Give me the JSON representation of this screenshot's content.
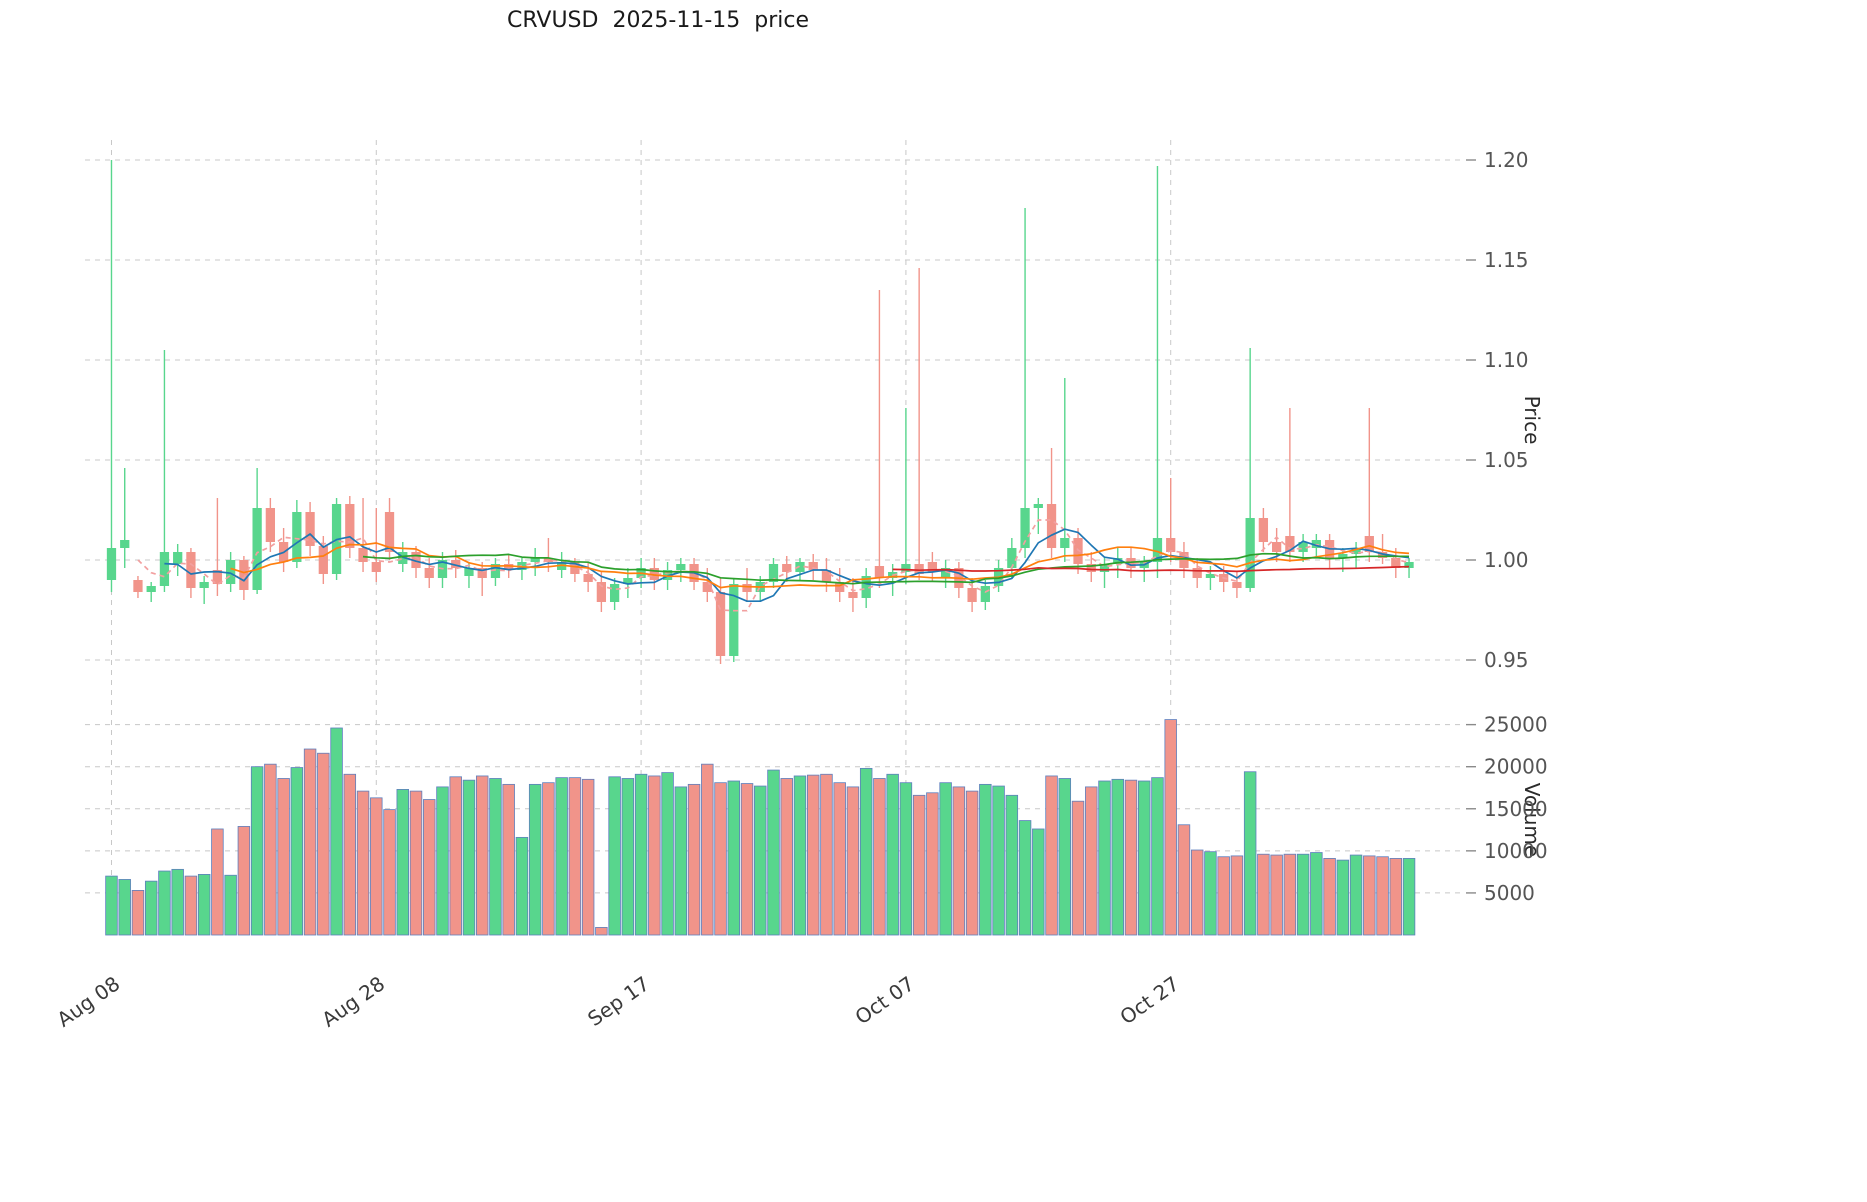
{
  "chart_data": {
    "type": "candlestick",
    "title": "CRVUSD  2025-11-15  price",
    "legend": "none",
    "grid": "dashed",
    "x_axis": {
      "tick_labels": [
        "Aug 08",
        "Aug 28",
        "Sep 17",
        "Oct 07",
        "Oct 27"
      ],
      "tick_indices": [
        0,
        20,
        40,
        60,
        80
      ]
    },
    "price_axis": {
      "label": "Price",
      "tick_values": [
        0.95,
        1.0,
        1.05,
        1.1,
        1.15,
        1.2
      ],
      "tick_labels": [
        "0.95",
        "1.00",
        "1.05",
        "1.10",
        "1.15",
        "1.20"
      ],
      "range": [
        0.935,
        1.21
      ]
    },
    "volume_axis": {
      "label": "Volume",
      "tick_values": [
        5000,
        10000,
        15000,
        20000,
        25000
      ],
      "tick_labels": [
        "5000",
        "10000",
        "15000",
        "20000",
        "25000"
      ],
      "range": [
        0,
        26500
      ]
    },
    "colors": {
      "up": "#58d68d",
      "down": "#f1948a",
      "volume_edge": "#5d7fbe",
      "grid": "#c8c8c8",
      "tick_text": "#555555",
      "ma_short_dashed": "#f2a0a0",
      "ma5": "#1f77b4",
      "ma10": "#ff7f0e",
      "ma20": "#2ca02c",
      "ma60": "#d62728"
    },
    "moving_averages": [
      {
        "name": "MA3",
        "window": 3,
        "color": "#f2a0a0",
        "dash": "5 4"
      },
      {
        "name": "MA5",
        "window": 5,
        "color": "#1f77b4",
        "dash": ""
      },
      {
        "name": "MA10",
        "window": 10,
        "color": "#ff7f0e",
        "dash": ""
      },
      {
        "name": "MA20",
        "window": 20,
        "color": "#2ca02c",
        "dash": ""
      },
      {
        "name": "MA60",
        "window": 60,
        "color": "#d62728",
        "dash": ""
      }
    ],
    "dates": [
      "2025-08-08",
      "2025-08-09",
      "2025-08-10",
      "2025-08-11",
      "2025-08-12",
      "2025-08-13",
      "2025-08-14",
      "2025-08-15",
      "2025-08-16",
      "2025-08-17",
      "2025-08-18",
      "2025-08-19",
      "2025-08-20",
      "2025-08-21",
      "2025-08-22",
      "2025-08-23",
      "2025-08-24",
      "2025-08-25",
      "2025-08-26",
      "2025-08-27",
      "2025-08-28",
      "2025-08-29",
      "2025-08-30",
      "2025-08-31",
      "2025-09-01",
      "2025-09-02",
      "2025-09-03",
      "2025-09-04",
      "2025-09-05",
      "2025-09-06",
      "2025-09-07",
      "2025-09-08",
      "2025-09-09",
      "2025-09-10",
      "2025-09-11",
      "2025-09-12",
      "2025-09-13",
      "2025-09-14",
      "2025-09-15",
      "2025-09-16",
      "2025-09-17",
      "2025-09-18",
      "2025-09-19",
      "2025-09-20",
      "2025-09-21",
      "2025-09-22",
      "2025-09-23",
      "2025-09-24",
      "2025-09-25",
      "2025-09-26",
      "2025-09-27",
      "2025-09-28",
      "2025-09-29",
      "2025-09-30",
      "2025-10-01",
      "2025-10-02",
      "2025-10-03",
      "2025-10-04",
      "2025-10-05",
      "2025-10-06",
      "2025-10-07",
      "2025-10-08",
      "2025-10-09",
      "2025-10-10",
      "2025-10-11",
      "2025-10-12",
      "2025-10-13",
      "2025-10-14",
      "2025-10-15",
      "2025-10-16",
      "2025-10-17",
      "2025-10-18",
      "2025-10-19",
      "2025-10-20",
      "2025-10-21",
      "2025-10-22",
      "2025-10-23",
      "2025-10-24",
      "2025-10-25",
      "2025-10-26",
      "2025-10-27",
      "2025-10-28",
      "2025-10-29",
      "2025-10-30",
      "2025-10-31",
      "2025-11-01",
      "2025-11-02",
      "2025-11-03",
      "2025-11-04",
      "2025-11-05",
      "2025-11-06",
      "2025-11-07",
      "2025-11-08",
      "2025-11-09",
      "2025-11-10",
      "2025-11-11",
      "2025-11-12",
      "2025-11-13",
      "2025-11-14"
    ],
    "open": [
      0.99,
      1.006,
      0.99,
      0.984,
      0.987,
      0.998,
      1.004,
      0.986,
      0.995,
      0.988,
      1.0,
      0.985,
      1.026,
      1.009,
      0.999,
      1.024,
      1.007,
      0.993,
      1.028,
      1.006,
      0.999,
      1.024,
      0.998,
      1.004,
      0.996,
      0.991,
      1.0,
      0.992,
      0.996,
      0.991,
      0.998,
      0.995,
      0.999,
      1.001,
      0.995,
      0.999,
      0.993,
      0.989,
      0.979,
      0.988,
      0.991,
      0.996,
      0.99,
      0.995,
      0.998,
      0.989,
      0.984,
      0.952,
      0.988,
      0.984,
      0.989,
      0.998,
      0.994,
      0.999,
      0.995,
      0.989,
      0.984,
      0.981,
      0.997,
      0.991,
      0.994,
      0.998,
      0.999,
      0.991,
      0.996,
      0.986,
      0.979,
      0.987,
      0.996,
      1.006,
      1.026,
      1.028,
      1.006,
      1.011,
      0.998,
      0.994,
      0.998,
      1.001,
      0.996,
      0.999,
      1.011,
      1.004,
      0.996,
      0.991,
      0.993,
      0.989,
      0.986,
      1.021,
      1.009,
      1.012,
      1.004,
      1.006,
      1.01,
      1.001,
      1.003,
      1.012,
      1.004,
      1.001,
      0.996
    ],
    "high": [
      1.2,
      1.046,
      0.992,
      0.989,
      1.105,
      1.008,
      1.006,
      0.992,
      1.031,
      1.004,
      1.002,
      1.046,
      1.031,
      1.016,
      1.03,
      1.029,
      1.012,
      1.031,
      1.032,
      1.031,
      1.026,
      1.031,
      1.009,
      1.007,
      1.001,
      1.004,
      1.005,
      0.999,
      0.999,
      1.001,
      1.003,
      1.001,
      1.006,
      1.011,
      1.004,
      1.001,
      0.999,
      0.994,
      0.991,
      0.996,
      1.001,
      1.001,
      0.999,
      1.001,
      1.001,
      0.996,
      0.991,
      0.991,
      0.996,
      0.992,
      1.001,
      1.002,
      1.001,
      1.003,
      1.001,
      0.996,
      0.991,
      0.996,
      1.135,
      0.998,
      1.076,
      1.146,
      1.004,
      1.0,
      0.999,
      0.991,
      0.99,
      1.0,
      1.011,
      1.176,
      1.031,
      1.056,
      1.091,
      1.016,
      1.004,
      1.001,
      1.006,
      1.006,
      1.002,
      1.197,
      1.041,
      1.009,
      1.001,
      0.997,
      0.997,
      0.994,
      1.106,
      1.026,
      1.016,
      1.076,
      1.013,
      1.013,
      1.013,
      1.006,
      1.009,
      1.076,
      1.013,
      1.006,
      1.001
    ],
    "low": [
      0.984,
      0.996,
      0.981,
      0.979,
      0.984,
      0.992,
      0.981,
      0.978,
      0.982,
      0.984,
      0.98,
      0.983,
      1.004,
      0.994,
      0.996,
      1.002,
      0.988,
      0.99,
      1.001,
      0.994,
      0.989,
      1.0,
      0.994,
      0.991,
      0.986,
      0.986,
      0.991,
      0.986,
      0.982,
      0.987,
      0.991,
      0.99,
      0.992,
      0.994,
      0.991,
      0.989,
      0.984,
      0.974,
      0.975,
      0.981,
      0.986,
      0.985,
      0.985,
      0.989,
      0.985,
      0.979,
      0.948,
      0.949,
      0.979,
      0.979,
      0.986,
      0.989,
      0.99,
      0.99,
      0.984,
      0.979,
      0.974,
      0.976,
      0.986,
      0.982,
      0.988,
      0.99,
      0.989,
      0.986,
      0.981,
      0.974,
      0.975,
      0.984,
      0.991,
      1.001,
      1.013,
      1.001,
      0.999,
      0.993,
      0.989,
      0.986,
      0.991,
      0.991,
      0.989,
      0.991,
      0.999,
      0.991,
      0.986,
      0.985,
      0.984,
      0.981,
      0.984,
      1.004,
      0.999,
      0.999,
      0.999,
      1.001,
      0.996,
      0.994,
      0.996,
      0.999,
      0.998,
      0.991,
      0.991
    ],
    "close": [
      1.006,
      1.01,
      0.984,
      0.987,
      1.004,
      1.004,
      0.986,
      0.989,
      0.988,
      1.0,
      0.985,
      1.026,
      1.009,
      0.999,
      1.024,
      1.007,
      0.993,
      1.028,
      1.006,
      0.999,
      0.994,
      1.004,
      1.004,
      0.996,
      0.991,
      1.0,
      0.996,
      0.996,
      0.991,
      0.998,
      0.995,
      0.999,
      1.001,
      0.999,
      0.999,
      0.993,
      0.989,
      0.979,
      0.988,
      0.991,
      0.996,
      0.99,
      0.995,
      0.998,
      0.989,
      0.984,
      0.952,
      0.988,
      0.984,
      0.989,
      0.998,
      0.994,
      0.999,
      0.995,
      0.989,
      0.984,
      0.981,
      0.992,
      0.991,
      0.994,
      0.998,
      0.993,
      0.994,
      0.996,
      0.986,
      0.979,
      0.987,
      0.996,
      1.006,
      1.026,
      1.028,
      1.006,
      1.011,
      0.998,
      0.994,
      0.998,
      1.001,
      0.996,
      0.999,
      1.011,
      1.004,
      0.996,
      0.991,
      0.993,
      0.989,
      0.986,
      1.021,
      1.009,
      1.004,
      1.004,
      1.009,
      1.01,
      1.001,
      1.003,
      1.006,
      1.004,
      1.001,
      0.996,
      0.999
    ],
    "volume": [
      7000,
      6600,
      5300,
      6400,
      7600,
      7800,
      7000,
      7200,
      12600,
      7100,
      12900,
      20000,
      20300,
      18600,
      19900,
      22100,
      21600,
      24600,
      19100,
      17100,
      16300,
      14900,
      17300,
      17100,
      16100,
      17600,
      18800,
      18400,
      18900,
      18600,
      17900,
      11600,
      17900,
      18100,
      18700,
      18700,
      18500,
      900,
      18800,
      18600,
      19100,
      18900,
      19300,
      17600,
      17900,
      20300,
      18100,
      18300,
      18000,
      17700,
      19600,
      18600,
      18900,
      19000,
      19100,
      18100,
      17600,
      19800,
      18600,
      19100,
      18100,
      16600,
      16900,
      18100,
      17600,
      17100,
      17900,
      17700,
      16600,
      13600,
      12600,
      18900,
      18600,
      15900,
      17600,
      18300,
      18500,
      18400,
      18300,
      18700,
      25600,
      13100,
      10100,
      9900,
      9300,
      9400,
      19400,
      9600,
      9500,
      9600,
      9600,
      9800,
      9100,
      8900,
      9500,
      9400,
      9300,
      9100,
      9100
    ]
  }
}
